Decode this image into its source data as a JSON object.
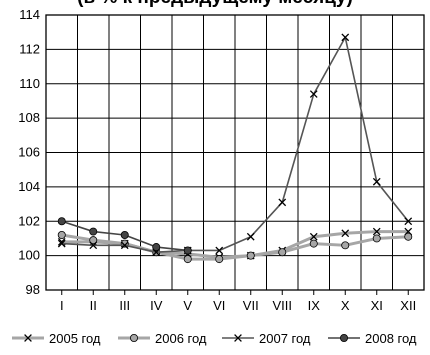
{
  "chart_data": {
    "type": "line",
    "title": "(в % к предыдущему месяцу)",
    "categories": [
      "I",
      "II",
      "III",
      "IV",
      "V",
      "VI",
      "VII",
      "VIII",
      "IX",
      "X",
      "XI",
      "XII"
    ],
    "ylim": [
      98,
      114
    ],
    "yticks": [
      98,
      100,
      102,
      104,
      106,
      108,
      110,
      112,
      114
    ],
    "grid": true,
    "legend_position": "bottom",
    "series": [
      {
        "name": "2005 год",
        "color": "#a6a6a6",
        "marker": "x",
        "values": [
          100.8,
          100.8,
          100.7,
          100.2,
          100.1,
          99.9,
          100.0,
          100.3,
          101.1,
          101.3,
          101.4,
          101.4
        ]
      },
      {
        "name": "2006 год",
        "color": "#a6a6a6",
        "marker": "circle",
        "values": [
          101.2,
          100.9,
          100.7,
          100.2,
          99.8,
          99.8,
          100.0,
          100.2,
          100.7,
          100.6,
          101.0,
          101.1
        ]
      },
      {
        "name": "2007 год",
        "color": "#555555",
        "marker": "x",
        "values": [
          100.7,
          100.6,
          100.6,
          100.2,
          100.3,
          100.3,
          101.1,
          103.1,
          109.4,
          112.7,
          104.3,
          102.0
        ]
      },
      {
        "name": "2008 год",
        "color": "#444444",
        "marker": "circle",
        "values": [
          102.0,
          101.4,
          101.2,
          100.5,
          100.3,
          null,
          null,
          null,
          null,
          null,
          null,
          null
        ]
      }
    ]
  }
}
